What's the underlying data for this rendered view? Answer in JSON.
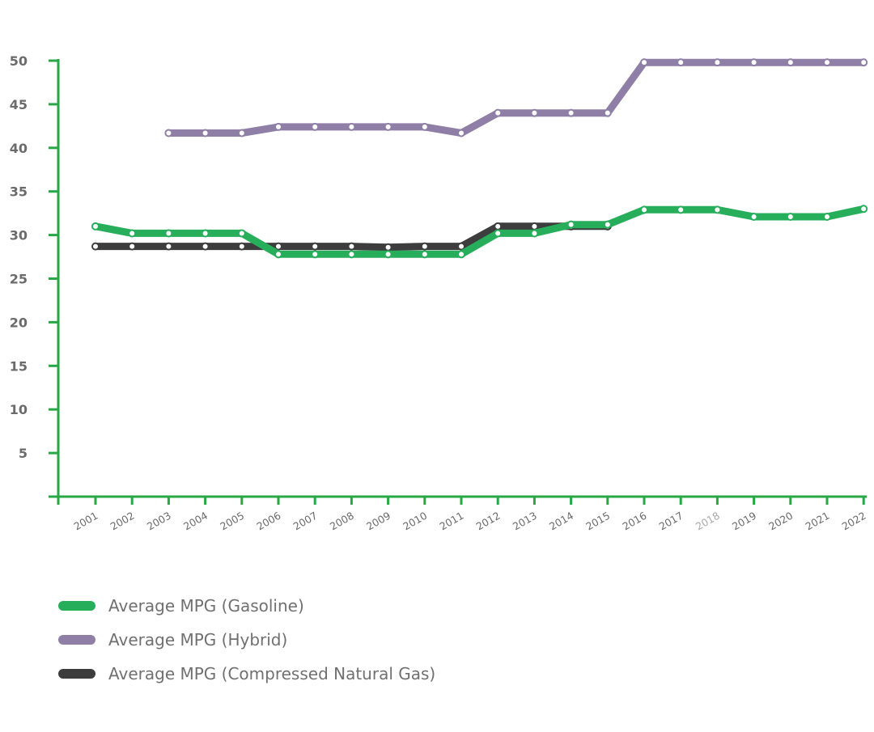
{
  "chart_data": {
    "type": "line",
    "title": "",
    "xlabel": "",
    "ylabel": "",
    "x": [
      "2001",
      "2002",
      "2003",
      "2004",
      "2005",
      "2006",
      "2007",
      "2008",
      "2009",
      "2010",
      "2011",
      "2012",
      "2013",
      "2014",
      "2015",
      "2016",
      "2017",
      "2018",
      "2019",
      "2020",
      "2021",
      "2022"
    ],
    "faded_x": [
      "2018"
    ],
    "yticks": [
      5,
      10,
      15,
      20,
      25,
      30,
      35,
      40,
      45,
      50
    ],
    "ylim": [
      0,
      50
    ],
    "grid": false,
    "legend_position": "bottom-left",
    "axis_color": "#28a745",
    "series": [
      {
        "name": "Average MPG (Compressed Natural Gas)",
        "key": "cng",
        "color": "#3d3d3d",
        "values": [
          28.7,
          28.7,
          28.7,
          28.7,
          28.7,
          28.7,
          28.7,
          28.7,
          28.6,
          28.7,
          28.7,
          31.0,
          31.0,
          31.0,
          31.0,
          null,
          null,
          null,
          null,
          null,
          null,
          null
        ]
      },
      {
        "name": "Average MPG (Gasoline)",
        "key": "gasoline",
        "color": "#27ae5b",
        "values": [
          31.0,
          30.2,
          30.2,
          30.2,
          30.2,
          27.8,
          27.8,
          27.8,
          27.8,
          27.8,
          27.8,
          30.2,
          30.2,
          31.2,
          31.2,
          32.9,
          32.9,
          32.9,
          32.1,
          32.1,
          32.1,
          33.0
        ]
      },
      {
        "name": "Average MPG (Hybrid)",
        "key": "hybrid",
        "color": "#8f7fa6",
        "values": [
          null,
          null,
          41.7,
          41.7,
          41.7,
          42.4,
          42.4,
          42.4,
          42.4,
          42.4,
          41.7,
          44.0,
          44.0,
          44.0,
          44.0,
          49.8,
          49.8,
          49.8,
          49.8,
          49.8,
          49.8,
          49.8
        ]
      }
    ]
  },
  "legend": {
    "gasoline": "Average MPG (Gasoline)",
    "hybrid": "Average MPG (Hybrid)",
    "cng": "Average MPG (Compressed Natural Gas)"
  },
  "colors": {
    "gasoline": "#27ae5b",
    "hybrid": "#8f7fa6",
    "cng": "#3d3d3d"
  }
}
